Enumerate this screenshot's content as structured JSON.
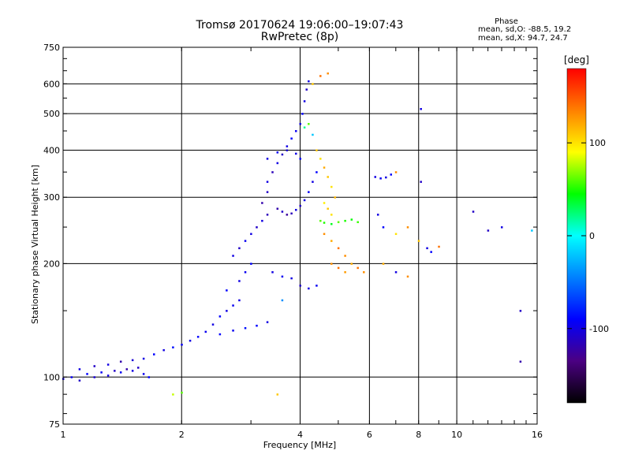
{
  "header": {
    "title_line1": "Tromsø 20170624 19:06:00–19:07:43",
    "title_line2": "RwPretec (8p)",
    "stats_title": "Phase",
    "stats_line1": "mean, sd,O: -88.5, 19.2",
    "stats_line2": "mean, sd,X:  94.7, 24.7"
  },
  "colorbar": {
    "unit": "[deg]",
    "ticks": [
      "100",
      "0",
      "-100"
    ],
    "tick_values": [
      100,
      0,
      -100
    ],
    "range": [
      -180,
      180
    ],
    "colors": [
      "#000000",
      "#4b0082",
      "#0000ff",
      "#0080ff",
      "#00ffff",
      "#00ff00",
      "#ffff00",
      "#ff8000",
      "#ff0000"
    ]
  },
  "chart_data": {
    "type": "scatter",
    "title": "Tromsø 20170624 19:06:00–19:07:43",
    "subtitle": "RwPretec (8p)",
    "xlabel": "Frequency [MHz]",
    "ylabel": "Stationary phase Virtual Height [km]",
    "x_scale": "log",
    "y_scale": "log",
    "xlim": [
      1,
      16
    ],
    "ylim": [
      75,
      750
    ],
    "x_ticks": [
      1,
      2,
      4,
      6,
      8,
      10,
      16
    ],
    "x_tick_labels": [
      "1",
      "2",
      "4",
      "6",
      "8",
      "10",
      "16"
    ],
    "y_ticks": [
      75,
      100,
      200,
      300,
      400,
      500,
      600,
      750
    ],
    "y_tick_labels": [
      "75",
      "100",
      "200",
      "300",
      "400",
      "500",
      "600",
      "750"
    ],
    "grid": true,
    "points": [
      [
        1.0,
        99,
        -100
      ],
      [
        1.05,
        100,
        -95
      ],
      [
        1.1,
        98,
        -110
      ],
      [
        1.15,
        102,
        -90
      ],
      [
        1.2,
        100,
        -105
      ],
      [
        1.25,
        103,
        -95
      ],
      [
        1.3,
        101,
        -100
      ],
      [
        1.35,
        104,
        -110
      ],
      [
        1.4,
        103,
        -95
      ],
      [
        1.45,
        105,
        -120
      ],
      [
        1.5,
        104,
        -100
      ],
      [
        1.55,
        106,
        -110
      ],
      [
        1.6,
        102,
        -95
      ],
      [
        1.65,
        100,
        -90
      ],
      [
        1.1,
        105,
        -100
      ],
      [
        1.2,
        107,
        -110
      ],
      [
        1.3,
        108,
        -100
      ],
      [
        1.4,
        110,
        -120
      ],
      [
        1.5,
        111,
        -105
      ],
      [
        1.6,
        112,
        -100
      ],
      [
        1.7,
        115,
        -90
      ],
      [
        1.8,
        118,
        -100
      ],
      [
        1.9,
        120,
        -85
      ],
      [
        2.0,
        122,
        -95
      ],
      [
        2.1,
        125,
        -100
      ],
      [
        2.2,
        128,
        -90
      ],
      [
        2.3,
        132,
        -95
      ],
      [
        2.4,
        138,
        -100
      ],
      [
        2.5,
        145,
        -90
      ],
      [
        2.6,
        150,
        -100
      ],
      [
        2.7,
        155,
        -95
      ],
      [
        2.8,
        160,
        -100
      ],
      [
        2.5,
        130,
        -90
      ],
      [
        2.7,
        133,
        -95
      ],
      [
        2.9,
        135,
        -85
      ],
      [
        3.1,
        137,
        -90
      ],
      [
        3.3,
        140,
        -100
      ],
      [
        2.6,
        170,
        -90
      ],
      [
        2.8,
        180,
        -100
      ],
      [
        2.9,
        190,
        -95
      ],
      [
        3.0,
        200,
        -90
      ],
      [
        2.7,
        210,
        -100
      ],
      [
        2.8,
        220,
        -110
      ],
      [
        2.9,
        230,
        -95
      ],
      [
        3.0,
        240,
        -100
      ],
      [
        3.1,
        250,
        -110
      ],
      [
        3.2,
        260,
        -100
      ],
      [
        3.3,
        270,
        -115
      ],
      [
        3.2,
        290,
        -120
      ],
      [
        3.3,
        310,
        -110
      ],
      [
        3.3,
        330,
        -100
      ],
      [
        3.4,
        350,
        -115
      ],
      [
        3.5,
        370,
        -100
      ],
      [
        3.6,
        390,
        -110
      ],
      [
        3.7,
        410,
        -100
      ],
      [
        3.8,
        430,
        -90
      ],
      [
        3.9,
        450,
        -95
      ],
      [
        4.0,
        470,
        -100
      ],
      [
        4.05,
        500,
        -90
      ],
      [
        4.1,
        540,
        -100
      ],
      [
        4.15,
        580,
        -110
      ],
      [
        4.2,
        610,
        -100
      ],
      [
        3.5,
        280,
        -120
      ],
      [
        3.6,
        275,
        -110
      ],
      [
        3.7,
        270,
        -125
      ],
      [
        3.8,
        272,
        -115
      ],
      [
        3.9,
        278,
        -100
      ],
      [
        4.0,
        285,
        -110
      ],
      [
        4.1,
        295,
        -100
      ],
      [
        4.2,
        310,
        -95
      ],
      [
        4.3,
        330,
        -100
      ],
      [
        4.4,
        350,
        -90
      ],
      [
        3.3,
        380,
        -100
      ],
      [
        3.5,
        395,
        -95
      ],
      [
        3.7,
        400,
        -105
      ],
      [
        3.9,
        392,
        -100
      ],
      [
        4.0,
        380,
        -90
      ],
      [
        3.4,
        190,
        -100
      ],
      [
        3.6,
        185,
        -95
      ],
      [
        3.8,
        183,
        -100
      ],
      [
        4.0,
        175,
        -110
      ],
      [
        4.2,
        172,
        -100
      ],
      [
        4.4,
        175,
        -95
      ],
      [
        4.4,
        400,
        110
      ],
      [
        4.5,
        380,
        100
      ],
      [
        4.6,
        360,
        120
      ],
      [
        4.7,
        340,
        110
      ],
      [
        4.8,
        320,
        100
      ],
      [
        4.9,
        300,
        115
      ],
      [
        4.6,
        290,
        95
      ],
      [
        4.7,
        280,
        110
      ],
      [
        4.8,
        270,
        100
      ],
      [
        4.5,
        260,
        60
      ],
      [
        4.6,
        257,
        50
      ],
      [
        4.8,
        255,
        40
      ],
      [
        5.0,
        258,
        60
      ],
      [
        5.2,
        260,
        50
      ],
      [
        5.4,
        262,
        45
      ],
      [
        5.6,
        258,
        55
      ],
      [
        4.6,
        240,
        130
      ],
      [
        4.8,
        230,
        120
      ],
      [
        5.0,
        220,
        140
      ],
      [
        5.2,
        210,
        130
      ],
      [
        5.4,
        200,
        120
      ],
      [
        5.6,
        195,
        140
      ],
      [
        5.8,
        190,
        130
      ],
      [
        4.8,
        200,
        130
      ],
      [
        5.0,
        195,
        140
      ],
      [
        5.2,
        190,
        125
      ],
      [
        4.5,
        630,
        140
      ],
      [
        4.7,
        640,
        130
      ],
      [
        4.3,
        600,
        110
      ],
      [
        4.2,
        470,
        60
      ],
      [
        4.1,
        460,
        20
      ],
      [
        4.3,
        440,
        -20
      ],
      [
        6.2,
        340,
        -100
      ],
      [
        6.4,
        337,
        -95
      ],
      [
        6.6,
        339,
        -100
      ],
      [
        6.8,
        345,
        -90
      ],
      [
        7.0,
        350,
        130
      ],
      [
        6.3,
        270,
        -100
      ],
      [
        6.5,
        250,
        -90
      ],
      [
        7.0,
        240,
        100
      ],
      [
        7.5,
        250,
        130
      ],
      [
        8.0,
        230,
        110
      ],
      [
        8.4,
        220,
        -100
      ],
      [
        8.6,
        215,
        -90
      ],
      [
        9.0,
        222,
        140
      ],
      [
        6.5,
        200,
        120
      ],
      [
        7.0,
        190,
        -100
      ],
      [
        7.5,
        185,
        130
      ],
      [
        8.1,
        515,
        -100
      ],
      [
        8.1,
        330,
        -110
      ],
      [
        11.0,
        275,
        -110
      ],
      [
        12.0,
        245,
        -110
      ],
      [
        13.0,
        250,
        -100
      ],
      [
        15.5,
        245,
        -20
      ],
      [
        14.5,
        150,
        -110
      ],
      [
        14.5,
        110,
        -120
      ],
      [
        1.9,
        90,
        80
      ],
      [
        2.0,
        91,
        60
      ],
      [
        3.5,
        90,
        110
      ],
      [
        3.6,
        160,
        -40
      ]
    ],
    "colorbar_label": "[deg]"
  }
}
